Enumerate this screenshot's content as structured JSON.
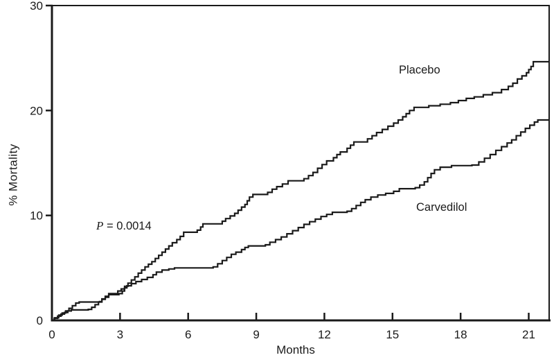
{
  "chart_data": {
    "type": "line",
    "subtype": "kaplan-meier-step",
    "title": "",
    "xlabel": "Months",
    "ylabel": "% Mortality",
    "xlim": [
      0,
      21.9
    ],
    "ylim": [
      0,
      30
    ],
    "x_ticks": [
      0,
      3,
      6,
      9,
      12,
      15,
      18,
      21
    ],
    "y_ticks": [
      0,
      10,
      20,
      30
    ],
    "grid": false,
    "legend_position": "labels-on-curves",
    "line_color": "#1a1a1a",
    "background": "#ffffff",
    "annotation": {
      "text": "P = 0.0014",
      "italic_part": "P",
      "rest": " = 0.0014"
    },
    "series": [
      {
        "name": "Placebo",
        "final_value_pct": 24.65,
        "points": [
          [
            0,
            0
          ],
          [
            0.1,
            0.2
          ],
          [
            0.25,
            0.4
          ],
          [
            0.4,
            0.6
          ],
          [
            0.55,
            0.75
          ],
          [
            0.7,
            0.9
          ],
          [
            0.85,
            1.0
          ],
          [
            1.6,
            1.05
          ],
          [
            1.75,
            1.25
          ],
          [
            1.9,
            1.5
          ],
          [
            2.05,
            1.75
          ],
          [
            2.2,
            2.0
          ],
          [
            2.35,
            2.2
          ],
          [
            2.5,
            2.55
          ],
          [
            2.9,
            2.8
          ],
          [
            3.05,
            3.0
          ],
          [
            3.2,
            3.25
          ],
          [
            3.35,
            3.55
          ],
          [
            3.5,
            3.85
          ],
          [
            3.65,
            4.15
          ],
          [
            3.8,
            4.5
          ],
          [
            3.95,
            4.8
          ],
          [
            4.1,
            5.1
          ],
          [
            4.25,
            5.35
          ],
          [
            4.4,
            5.6
          ],
          [
            4.55,
            5.9
          ],
          [
            4.7,
            6.2
          ],
          [
            4.85,
            6.5
          ],
          [
            5.0,
            6.8
          ],
          [
            5.15,
            7.1
          ],
          [
            5.3,
            7.4
          ],
          [
            5.5,
            7.7
          ],
          [
            5.65,
            8.0
          ],
          [
            5.8,
            8.4
          ],
          [
            6.4,
            8.6
          ],
          [
            6.55,
            8.9
          ],
          [
            6.65,
            9.2
          ],
          [
            7.5,
            9.45
          ],
          [
            7.65,
            9.7
          ],
          [
            7.85,
            9.95
          ],
          [
            8.05,
            10.2
          ],
          [
            8.2,
            10.5
          ],
          [
            8.35,
            10.8
          ],
          [
            8.5,
            11.05
          ],
          [
            8.6,
            11.4
          ],
          [
            8.7,
            11.75
          ],
          [
            8.85,
            12.0
          ],
          [
            9.5,
            12.2
          ],
          [
            9.7,
            12.5
          ],
          [
            9.9,
            12.75
          ],
          [
            10.15,
            13.0
          ],
          [
            10.4,
            13.3
          ],
          [
            11.1,
            13.5
          ],
          [
            11.3,
            13.8
          ],
          [
            11.5,
            14.1
          ],
          [
            11.7,
            14.5
          ],
          [
            11.9,
            14.85
          ],
          [
            12.1,
            15.2
          ],
          [
            12.4,
            15.5
          ],
          [
            12.55,
            15.8
          ],
          [
            12.7,
            16.05
          ],
          [
            13.0,
            16.4
          ],
          [
            13.15,
            16.7
          ],
          [
            13.3,
            17.0
          ],
          [
            13.9,
            17.3
          ],
          [
            14.1,
            17.6
          ],
          [
            14.3,
            17.9
          ],
          [
            14.55,
            18.2
          ],
          [
            14.8,
            18.5
          ],
          [
            15.05,
            18.8
          ],
          [
            15.25,
            19.1
          ],
          [
            15.45,
            19.4
          ],
          [
            15.6,
            19.7
          ],
          [
            15.75,
            20.0
          ],
          [
            15.95,
            20.3
          ],
          [
            16.6,
            20.45
          ],
          [
            17.1,
            20.6
          ],
          [
            17.55,
            20.75
          ],
          [
            17.9,
            20.95
          ],
          [
            18.25,
            21.15
          ],
          [
            18.6,
            21.3
          ],
          [
            19.0,
            21.5
          ],
          [
            19.4,
            21.7
          ],
          [
            19.8,
            22.0
          ],
          [
            20.1,
            22.3
          ],
          [
            20.3,
            22.6
          ],
          [
            20.5,
            23.0
          ],
          [
            20.7,
            23.3
          ],
          [
            20.9,
            23.6
          ],
          [
            21.0,
            23.9
          ],
          [
            21.1,
            24.2
          ],
          [
            21.2,
            24.65
          ],
          [
            21.9,
            24.65
          ]
        ]
      },
      {
        "name": "Carvedilol",
        "final_value_pct": 19.1,
        "points": [
          [
            0,
            0
          ],
          [
            0.12,
            0.25
          ],
          [
            0.3,
            0.5
          ],
          [
            0.45,
            0.7
          ],
          [
            0.6,
            0.9
          ],
          [
            0.75,
            1.15
          ],
          [
            0.9,
            1.4
          ],
          [
            1.05,
            1.65
          ],
          [
            1.2,
            1.75
          ],
          [
            2.1,
            1.8
          ],
          [
            2.2,
            2.05
          ],
          [
            2.35,
            2.3
          ],
          [
            2.5,
            2.45
          ],
          [
            2.95,
            2.55
          ],
          [
            3.1,
            2.8
          ],
          [
            3.2,
            3.1
          ],
          [
            3.3,
            3.3
          ],
          [
            3.5,
            3.5
          ],
          [
            3.7,
            3.7
          ],
          [
            3.95,
            3.9
          ],
          [
            4.2,
            4.1
          ],
          [
            4.45,
            4.35
          ],
          [
            4.6,
            4.6
          ],
          [
            4.85,
            4.8
          ],
          [
            5.15,
            4.9
          ],
          [
            5.4,
            5.0
          ],
          [
            7.1,
            5.1
          ],
          [
            7.3,
            5.4
          ],
          [
            7.5,
            5.7
          ],
          [
            7.7,
            6.0
          ],
          [
            7.9,
            6.3
          ],
          [
            8.1,
            6.5
          ],
          [
            8.35,
            6.75
          ],
          [
            8.5,
            6.95
          ],
          [
            8.65,
            7.1
          ],
          [
            9.4,
            7.2
          ],
          [
            9.6,
            7.45
          ],
          [
            9.85,
            7.7
          ],
          [
            10.1,
            7.95
          ],
          [
            10.35,
            8.25
          ],
          [
            10.6,
            8.55
          ],
          [
            10.85,
            8.85
          ],
          [
            11.1,
            9.15
          ],
          [
            11.35,
            9.4
          ],
          [
            11.6,
            9.65
          ],
          [
            11.85,
            9.9
          ],
          [
            12.1,
            10.1
          ],
          [
            12.35,
            10.3
          ],
          [
            13.0,
            10.4
          ],
          [
            13.2,
            10.65
          ],
          [
            13.4,
            10.95
          ],
          [
            13.6,
            11.25
          ],
          [
            13.8,
            11.5
          ],
          [
            14.05,
            11.75
          ],
          [
            14.35,
            11.95
          ],
          [
            14.7,
            12.1
          ],
          [
            15.05,
            12.3
          ],
          [
            15.3,
            12.55
          ],
          [
            16.0,
            12.65
          ],
          [
            16.2,
            12.9
          ],
          [
            16.4,
            13.2
          ],
          [
            16.55,
            13.6
          ],
          [
            16.7,
            14.0
          ],
          [
            16.85,
            14.35
          ],
          [
            17.1,
            14.6
          ],
          [
            17.6,
            14.75
          ],
          [
            18.5,
            14.8
          ],
          [
            18.8,
            15.1
          ],
          [
            19.05,
            15.45
          ],
          [
            19.3,
            15.8
          ],
          [
            19.55,
            16.2
          ],
          [
            19.8,
            16.55
          ],
          [
            20.05,
            16.9
          ],
          [
            20.25,
            17.2
          ],
          [
            20.45,
            17.6
          ],
          [
            20.65,
            17.95
          ],
          [
            20.85,
            18.3
          ],
          [
            21.05,
            18.6
          ],
          [
            21.25,
            18.9
          ],
          [
            21.4,
            19.1
          ],
          [
            21.9,
            19.1
          ]
        ]
      }
    ]
  }
}
